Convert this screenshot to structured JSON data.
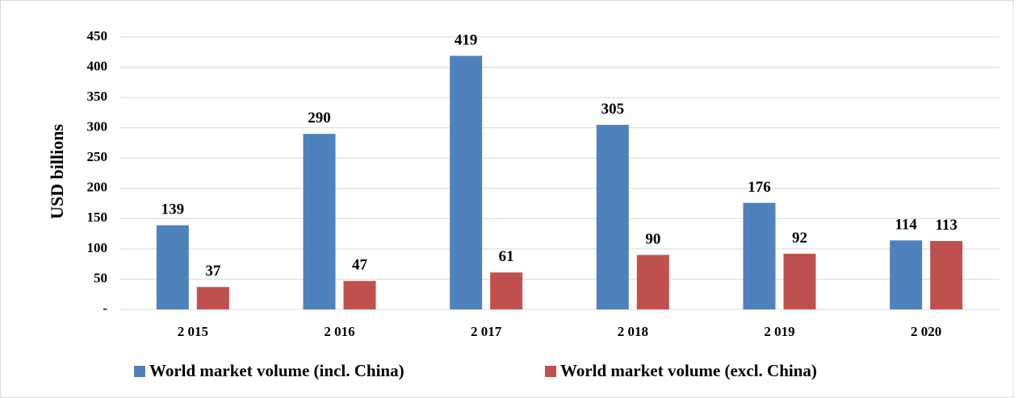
{
  "chart_data": {
    "type": "bar",
    "categories": [
      "2 015",
      "2 016",
      "2 017",
      "2 018",
      "2 019",
      "2 020"
    ],
    "series": [
      {
        "name": "World market volume (incl. China)",
        "values": [
          139,
          290,
          419,
          305,
          176,
          114
        ],
        "color": "#4f81bd"
      },
      {
        "name": "World market volume (excl. China)",
        "values": [
          37,
          47,
          61,
          90,
          92,
          113
        ],
        "color": "#c0504d"
      }
    ],
    "title": "",
    "xlabel": "",
    "ylabel": "USD billions",
    "ylim": [
      0,
      450
    ],
    "yticks": [
      0,
      50,
      100,
      150,
      200,
      250,
      300,
      350,
      400,
      450
    ],
    "ytick_labels": [
      "-",
      "50",
      "100",
      "150",
      "200",
      "250",
      "300",
      "350",
      "400",
      "450"
    ],
    "grid": true,
    "legend_position": "bottom",
    "gridline_color": "#d9d9d9"
  }
}
